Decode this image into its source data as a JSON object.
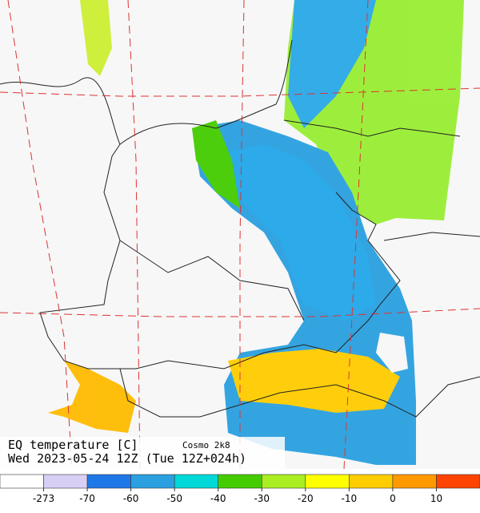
{
  "title": {
    "product": "EQ temperature [C]",
    "model": "Cosmo 2k8",
    "time": "Wed 2023-05-24 12Z (Tue 12Z+024h)"
  },
  "colorbar": {
    "colors": [
      "#ffffff",
      "#d8d0f4",
      "#1f78e8",
      "#2aa0e0",
      "#00d8d8",
      "#44cc00",
      "#aaee22",
      "#ffff00",
      "#ffcc00",
      "#ff9900",
      "#ff4400"
    ],
    "ticks": [
      -273,
      -70,
      -60,
      -50,
      -40,
      -30,
      -20,
      -10,
      0,
      10
    ]
  }
}
